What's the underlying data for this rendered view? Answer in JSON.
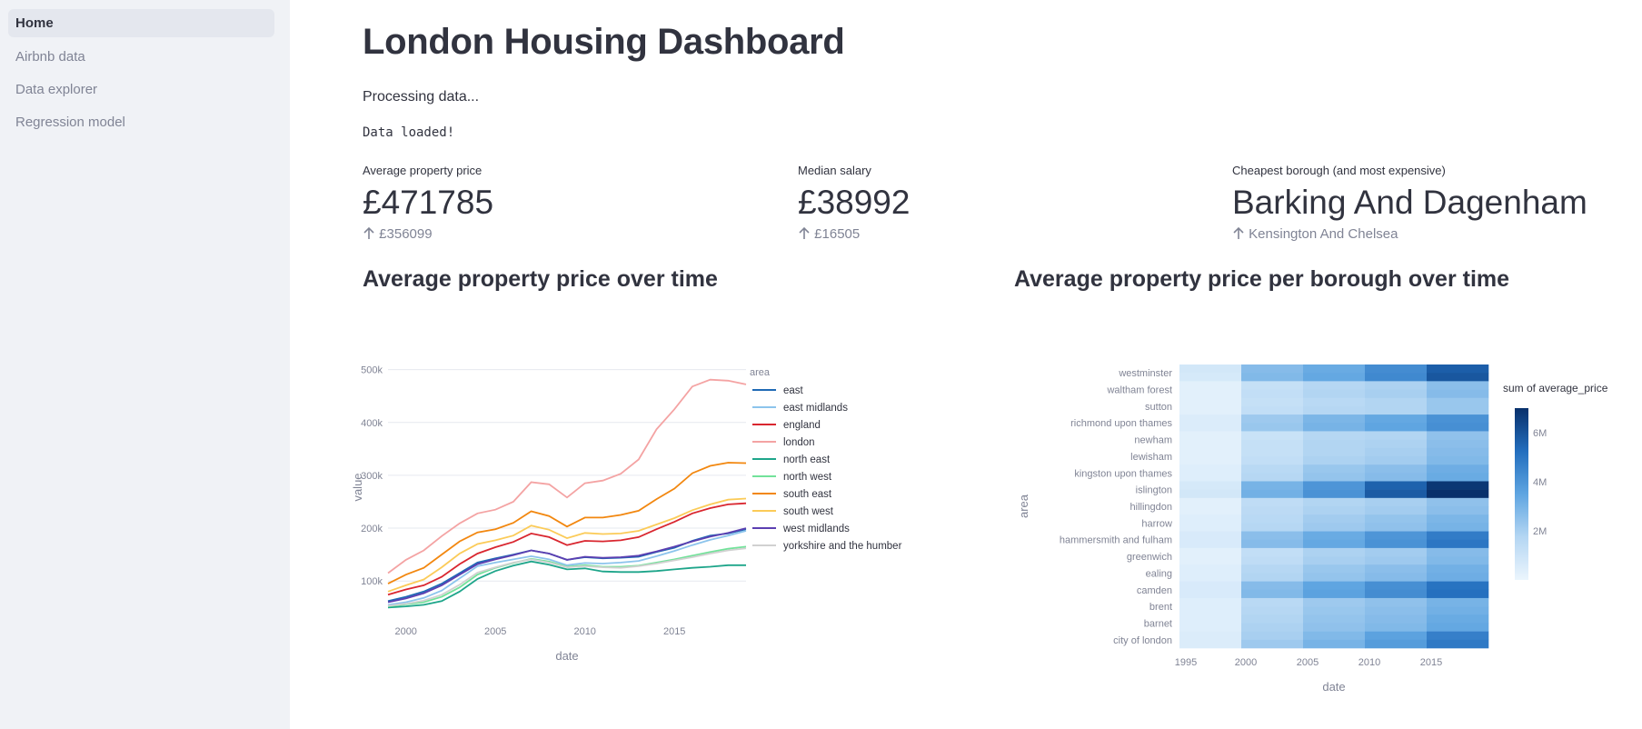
{
  "sidebar": {
    "items": [
      {
        "label": "Home",
        "active": true
      },
      {
        "label": "Airbnb data",
        "active": false
      },
      {
        "label": "Data explorer",
        "active": false
      },
      {
        "label": "Regression model",
        "active": false
      }
    ]
  },
  "page": {
    "title": "London Housing Dashboard",
    "status_processing": "Processing data...",
    "status_loaded": "Data loaded!"
  },
  "metrics": [
    {
      "label": "Average property price",
      "value": "£471785",
      "delta": "£356099"
    },
    {
      "label": "Median salary",
      "value": "£38992",
      "delta": "£16505"
    },
    {
      "label": "Cheapest borough (and most expensive)",
      "value": "Barking And Dagenham",
      "delta": "Kensington And Chelsea"
    }
  ],
  "sections": {
    "line_title": "Average property price over time",
    "heatmap_title": "Average property price per borough over time"
  },
  "chart_data": [
    {
      "type": "line",
      "xlabel": "date",
      "ylabel": "value",
      "legend_title": "area",
      "legend_position": "right",
      "xlim": [
        1999,
        2019
      ],
      "ylim": [
        35000,
        520000
      ],
      "x_ticks": [
        2000,
        2005,
        2010,
        2015
      ],
      "y_ticks": [
        100000,
        200000,
        300000,
        400000,
        500000
      ],
      "y_tick_labels": [
        "100k",
        "200k",
        "300k",
        "400k",
        "500k"
      ],
      "grid": true,
      "x": [
        1999,
        2000,
        2001,
        2002,
        2003,
        2004,
        2005,
        2006,
        2007,
        2008,
        2009,
        2010,
        2011,
        2012,
        2013,
        2014,
        2015,
        2016,
        2017,
        2018,
        2019
      ],
      "series": [
        {
          "name": "east",
          "color": "#1f6ab5",
          "values": [
            62000,
            70000,
            80000,
            95000,
            115000,
            135000,
            143000,
            150000,
            158000,
            152000,
            140000,
            145000,
            143000,
            144000,
            146000,
            155000,
            163000,
            176000,
            186000,
            190000,
            198000
          ]
        },
        {
          "name": "east midlands",
          "color": "#8cc4ec",
          "values": [
            55000,
            60000,
            68000,
            82000,
            105000,
            128000,
            135000,
            141000,
            147000,
            141000,
            130000,
            134000,
            133000,
            135000,
            138000,
            147000,
            157000,
            168000,
            178000,
            186000,
            195000
          ]
        },
        {
          "name": "england",
          "color": "#d9262f",
          "values": [
            74000,
            84000,
            92000,
            108000,
            132000,
            152000,
            164000,
            174000,
            190000,
            183000,
            168000,
            176000,
            175000,
            177000,
            183000,
            198000,
            212000,
            228000,
            238000,
            245000,
            247000
          ]
        },
        {
          "name": "london",
          "color": "#f4a3a3",
          "values": [
            115000,
            140000,
            158000,
            185000,
            209000,
            228000,
            235000,
            250000,
            287000,
            283000,
            258000,
            285000,
            290000,
            303000,
            330000,
            387000,
            425000,
            468000,
            481000,
            479000,
            472000
          ]
        },
        {
          "name": "north east",
          "color": "#1ea58a",
          "values": [
            50000,
            52000,
            55000,
            62000,
            80000,
            104000,
            119000,
            129000,
            137000,
            131000,
            122000,
            124000,
            118000,
            117000,
            117000,
            119000,
            122000,
            125000,
            127000,
            130000,
            130000
          ]
        },
        {
          "name": "north west",
          "color": "#72e29a",
          "values": [
            52000,
            56000,
            60000,
            70000,
            88000,
            112000,
            125000,
            134000,
            142000,
            137000,
            127000,
            130000,
            127000,
            127000,
            129000,
            135000,
            141000,
            148000,
            155000,
            161000,
            165000
          ]
        },
        {
          "name": "south east",
          "color": "#f2870f",
          "values": [
            95000,
            112000,
            125000,
            150000,
            175000,
            192000,
            198000,
            210000,
            232000,
            223000,
            203000,
            220000,
            220000,
            225000,
            233000,
            255000,
            275000,
            304000,
            318000,
            324000,
            323000
          ]
        },
        {
          "name": "south west",
          "color": "#fbcb58",
          "values": [
            80000,
            92000,
            103000,
            126000,
            152000,
            170000,
            177000,
            186000,
            205000,
            197000,
            181000,
            191000,
            189000,
            190000,
            195000,
            207000,
            219000,
            234000,
            245000,
            254000,
            256000
          ]
        },
        {
          "name": "west midlands",
          "color": "#5c3fb1",
          "values": [
            60000,
            67000,
            77000,
            92000,
            112000,
            132000,
            141000,
            149000,
            158000,
            152000,
            140000,
            146000,
            144000,
            145000,
            148000,
            156000,
            165000,
            175000,
            184000,
            191000,
            200000
          ]
        },
        {
          "name": "yorkshire and the humber",
          "color": "#d1d1d1",
          "values": [
            53000,
            57000,
            63000,
            74000,
            93000,
            116000,
            126000,
            135000,
            141000,
            135000,
            126000,
            128000,
            126000,
            125000,
            128000,
            133000,
            139000,
            145000,
            152000,
            158000,
            162000
          ]
        }
      ]
    },
    {
      "type": "heatmap",
      "xlabel": "date",
      "ylabel": "area",
      "x_ticks": [
        1995,
        2000,
        2005,
        2010,
        2015
      ],
      "x_bins": [
        1995,
        2000,
        2005,
        2010,
        2015
      ],
      "colorbar_title": "sum of average_price",
      "colorbar_ticks": [
        2000000,
        4000000,
        6000000
      ],
      "colorbar_tick_labels": [
        "2M",
        "4M",
        "6M"
      ],
      "colorbar_range": [
        0,
        7000000
      ],
      "rows": [
        {
          "name": "westminster",
          "values": [
            [
              800000,
              700000
            ],
            [
              2700000,
              2800000
            ],
            [
              3300000,
              3400000
            ],
            [
              4300000,
              4400000
            ],
            [
              5700000,
              5900000
            ]
          ]
        },
        {
          "name": "waltham forest",
          "values": [
            [
              300000,
              300000
            ],
            [
              1200000,
              1300000
            ],
            [
              1700000,
              1800000
            ],
            [
              1900000,
              2000000
            ],
            [
              2600000,
              2700000
            ]
          ]
        },
        {
          "name": "sutton",
          "values": [
            [
              300000,
              300000
            ],
            [
              1200000,
              1300000
            ],
            [
              1600000,
              1700000
            ],
            [
              1800000,
              1800000
            ],
            [
              2300000,
              2300000
            ]
          ]
        },
        {
          "name": "richmond upon thames",
          "values": [
            [
              500000,
              500000
            ],
            [
              2200000,
              2300000
            ],
            [
              2900000,
              3000000
            ],
            [
              3400000,
              3500000
            ],
            [
              4100000,
              4200000
            ]
          ]
        },
        {
          "name": "newham",
          "values": [
            [
              300000,
              300000
            ],
            [
              1100000,
              1200000
            ],
            [
              1700000,
              1800000
            ],
            [
              1800000,
              1900000
            ],
            [
              2500000,
              2600000
            ]
          ]
        },
        {
          "name": "lewisham",
          "values": [
            [
              300000,
              300000
            ],
            [
              1200000,
              1300000
            ],
            [
              1800000,
              1900000
            ],
            [
              2000000,
              2100000
            ],
            [
              2700000,
              2800000
            ]
          ]
        },
        {
          "name": "kingston upon thames",
          "values": [
            [
              400000,
              400000
            ],
            [
              1600000,
              1700000
            ],
            [
              2300000,
              2400000
            ],
            [
              2600000,
              2700000
            ],
            [
              3200000,
              3300000
            ]
          ]
        },
        {
          "name": "islington",
          "values": [
            [
              700000,
              800000
            ],
            [
              3000000,
              3100000
            ],
            [
              4000000,
              4100000
            ],
            [
              5600000,
              5800000
            ],
            [
              6800000,
              7000000
            ]
          ]
        },
        {
          "name": "hillingdon",
          "values": [
            [
              300000,
              300000
            ],
            [
              1400000,
              1500000
            ],
            [
              1800000,
              1900000
            ],
            [
              2000000,
              2100000
            ],
            [
              2500000,
              2600000
            ]
          ]
        },
        {
          "name": "harrow",
          "values": [
            [
              400000,
              400000
            ],
            [
              1600000,
              1700000
            ],
            [
              2100000,
              2200000
            ],
            [
              2400000,
              2500000
            ],
            [
              2900000,
              3000000
            ]
          ]
        },
        {
          "name": "hammersmith and fulham",
          "values": [
            [
              600000,
              600000
            ],
            [
              2600000,
              2700000
            ],
            [
              3300000,
              3400000
            ],
            [
              4000000,
              4100000
            ],
            [
              4800000,
              5000000
            ]
          ]
        },
        {
          "name": "greenwich",
          "values": [
            [
              300000,
              300000
            ],
            [
              1300000,
              1400000
            ],
            [
              1900000,
              2000000
            ],
            [
              2100000,
              2200000
            ],
            [
              2700000,
              2800000
            ]
          ]
        },
        {
          "name": "ealing",
          "values": [
            [
              400000,
              400000
            ],
            [
              1700000,
              1800000
            ],
            [
              2300000,
              2400000
            ],
            [
              2600000,
              2700000
            ],
            [
              3100000,
              3200000
            ]
          ]
        },
        {
          "name": "camden",
          "values": [
            [
              600000,
              600000
            ],
            [
              2700000,
              2800000
            ],
            [
              3500000,
              3600000
            ],
            [
              4200000,
              4300000
            ],
            [
              5100000,
              5200000
            ]
          ]
        },
        {
          "name": "brent",
          "values": [
            [
              400000,
              400000
            ],
            [
              1600000,
              1700000
            ],
            [
              2200000,
              2300000
            ],
            [
              2500000,
              2600000
            ],
            [
              3000000,
              3100000
            ]
          ]
        },
        {
          "name": "barnet",
          "values": [
            [
              400000,
              400000
            ],
            [
              1800000,
              1900000
            ],
            [
              2400000,
              2500000
            ],
            [
              2700000,
              2800000
            ],
            [
              3300000,
              3400000
            ]
          ]
        },
        {
          "name": "city of london",
          "values": [
            [
              500000,
              500000
            ],
            [
              2000000,
              2200000
            ],
            [
              2800000,
              3000000
            ],
            [
              3600000,
              3800000
            ],
            [
              4700000,
              4900000
            ]
          ]
        }
      ]
    }
  ]
}
